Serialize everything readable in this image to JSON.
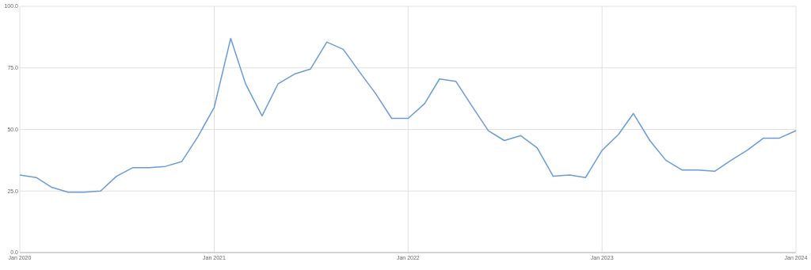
{
  "chart_data": {
    "type": "line",
    "x": [
      "2020-01",
      "2020-02",
      "2020-03",
      "2020-04",
      "2020-05",
      "2020-06",
      "2020-07",
      "2020-08",
      "2020-09",
      "2020-10",
      "2020-11",
      "2020-12",
      "2021-01",
      "2021-02",
      "2021-03",
      "2021-04",
      "2021-05",
      "2021-06",
      "2021-07",
      "2021-08",
      "2021-09",
      "2021-10",
      "2021-11",
      "2021-12",
      "2022-01",
      "2022-02",
      "2022-03",
      "2022-04",
      "2022-05",
      "2022-06",
      "2022-07",
      "2022-08",
      "2022-09",
      "2022-10",
      "2022-11",
      "2022-12",
      "2023-01",
      "2023-02",
      "2023-03",
      "2023-04",
      "2023-05",
      "2023-06",
      "2023-07",
      "2023-08",
      "2023-09",
      "2023-10",
      "2023-11",
      "2023-12",
      "2024-01"
    ],
    "series": [
      {
        "color": "#6a9bd8",
        "values": [
          31.5,
          30.5,
          26.5,
          24.5,
          24.5,
          25,
          31,
          34.5,
          34.5,
          35,
          37,
          47,
          59,
          87,
          68.5,
          55.5,
          68.5,
          72.5,
          74.5,
          85.5,
          82.5,
          73.5,
          64.5,
          54.5,
          54.5,
          60.5,
          70.5,
          69.5,
          59.5,
          49.5,
          45.5,
          47.5,
          42.5,
          31,
          31.5,
          30.5,
          41.5,
          48,
          56.5,
          45.5,
          37.5,
          33.5,
          33.5,
          33,
          37.5,
          41.5,
          46.5,
          46.5,
          49.5
        ]
      }
    ],
    "xlim": [
      "2020-01",
      "2024-01"
    ],
    "xticks": [
      {
        "value": "2020-01",
        "label": "Jan 2020"
      },
      {
        "value": "2021-01",
        "label": "Jan 2021"
      },
      {
        "value": "2022-01",
        "label": "Jan 2022"
      },
      {
        "value": "2023-01",
        "label": "Jan 2023"
      },
      {
        "value": "2024-01",
        "label": "Jan 2024"
      }
    ],
    "ylim": [
      0,
      100
    ],
    "yticks": [
      {
        "value": 0,
        "label": "0.0"
      },
      {
        "value": 25,
        "label": "25.0"
      },
      {
        "value": 50,
        "label": "50.0"
      },
      {
        "value": 75,
        "label": "75.0"
      },
      {
        "value": 100,
        "label": "100.0"
      }
    ],
    "grid": true,
    "marker": "none",
    "line_style": "solid"
  }
}
